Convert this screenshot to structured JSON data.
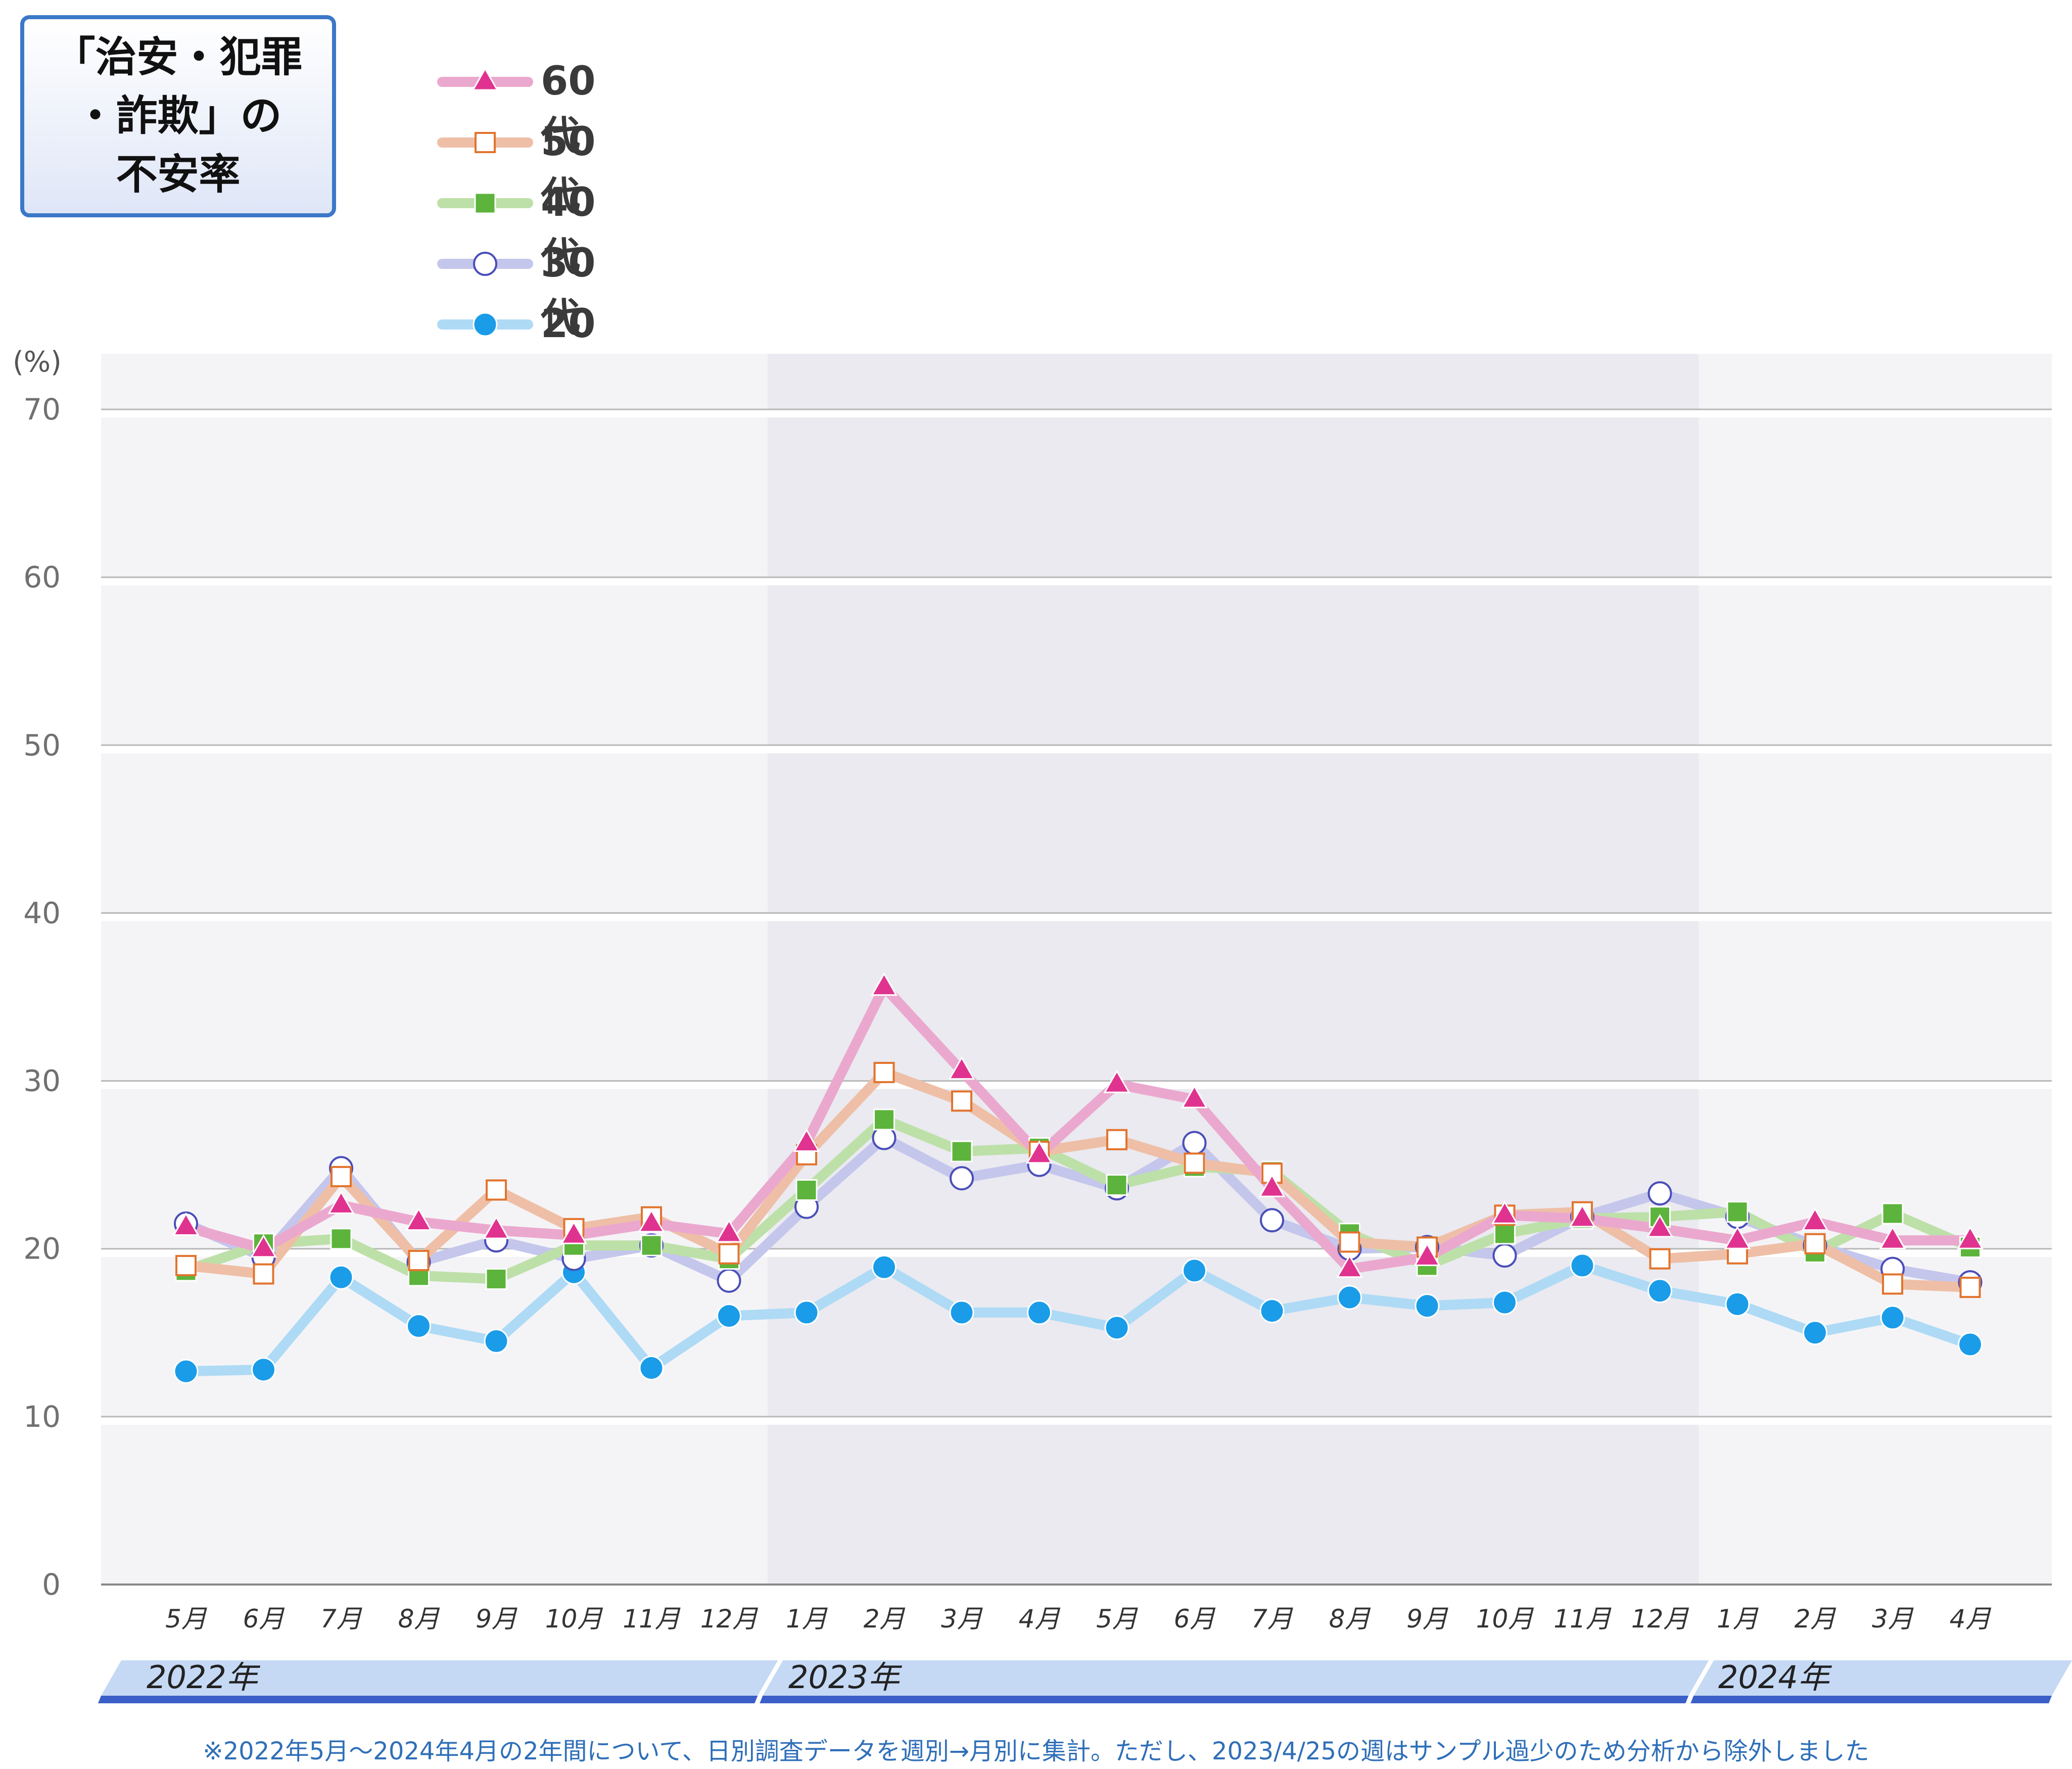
{
  "chart_data": {
    "type": "line",
    "title": "「治安・犯罪\n・詐欺」の\n不安率",
    "ylabel": "(%)",
    "ylim": [
      0,
      70
    ],
    "yticks": [
      0,
      10,
      20,
      30,
      40,
      50,
      60,
      70
    ],
    "grid": true,
    "legend_position": "top-left",
    "categories": [
      "5月",
      "6月",
      "7月",
      "8月",
      "9月",
      "10月",
      "11月",
      "12月",
      "1月",
      "2月",
      "3月",
      "4月",
      "5月",
      "6月",
      "7月",
      "8月",
      "9月",
      "10月",
      "11月",
      "12月",
      "1月",
      "2月",
      "3月",
      "4月"
    ],
    "years": [
      {
        "label": "2022年",
        "start": 0,
        "end": 7
      },
      {
        "label": "2023年",
        "start": 8,
        "end": 19
      },
      {
        "label": "2024年",
        "start": 20,
        "end": 23
      }
    ],
    "series": [
      {
        "name": "60代",
        "marker": "triangle",
        "line_color": "#eba8ce",
        "marker_color": "#e0338f",
        "values": [
          21.3,
          20.0,
          22.6,
          21.6,
          21.1,
          20.8,
          21.5,
          20.9,
          26.3,
          35.6,
          30.6,
          25.6,
          29.8,
          28.9,
          23.6,
          18.8,
          19.5,
          22.0,
          21.8,
          21.2,
          20.5,
          21.6,
          20.5,
          20.5
        ]
      },
      {
        "name": "50代",
        "marker": "square-open",
        "line_color": "#eebfa6",
        "marker_color": "#e2742e",
        "values": [
          19.0,
          18.5,
          24.3,
          19.3,
          23.5,
          21.2,
          21.9,
          19.7,
          25.6,
          30.5,
          28.8,
          25.8,
          26.5,
          25.1,
          24.5,
          20.4,
          20.1,
          22.0,
          22.2,
          19.4,
          19.7,
          20.3,
          17.9,
          17.7
        ]
      },
      {
        "name": "40代",
        "marker": "square",
        "line_color": "#bde0a8",
        "marker_color": "#5db43c",
        "values": [
          18.7,
          20.3,
          20.6,
          18.4,
          18.2,
          20.2,
          20.2,
          19.4,
          23.5,
          27.7,
          25.8,
          26.0,
          23.8,
          24.9,
          24.6,
          20.9,
          19.0,
          20.9,
          21.8,
          21.9,
          22.2,
          19.8,
          22.1,
          20.1
        ]
      },
      {
        "name": "30代",
        "marker": "circle-open",
        "line_color": "#c4c6ec",
        "marker_color": "#4a4eb8",
        "values": [
          21.5,
          19.5,
          24.8,
          19.2,
          20.5,
          19.4,
          20.2,
          18.1,
          22.5,
          26.6,
          24.2,
          25.0,
          23.6,
          26.3,
          21.7,
          20.0,
          20.1,
          19.6,
          21.9,
          23.3,
          21.9,
          20.2,
          18.8,
          18.0
        ]
      },
      {
        "name": "20代",
        "marker": "circle",
        "line_color": "#aedaf5",
        "marker_color": "#1a9ce8",
        "values": [
          12.7,
          12.8,
          18.3,
          15.4,
          14.5,
          18.6,
          12.9,
          16.0,
          16.2,
          18.9,
          16.2,
          16.2,
          15.3,
          18.7,
          16.3,
          17.1,
          16.6,
          16.8,
          19.0,
          17.5,
          16.7,
          15.0,
          15.9,
          14.3
        ]
      }
    ],
    "footnote": "※2022年5月～2024年4月の2年間について、日別調査データを週別→月別に集計。ただし、2023/4/25の週はサンプル過少のため分析から除外しました"
  }
}
